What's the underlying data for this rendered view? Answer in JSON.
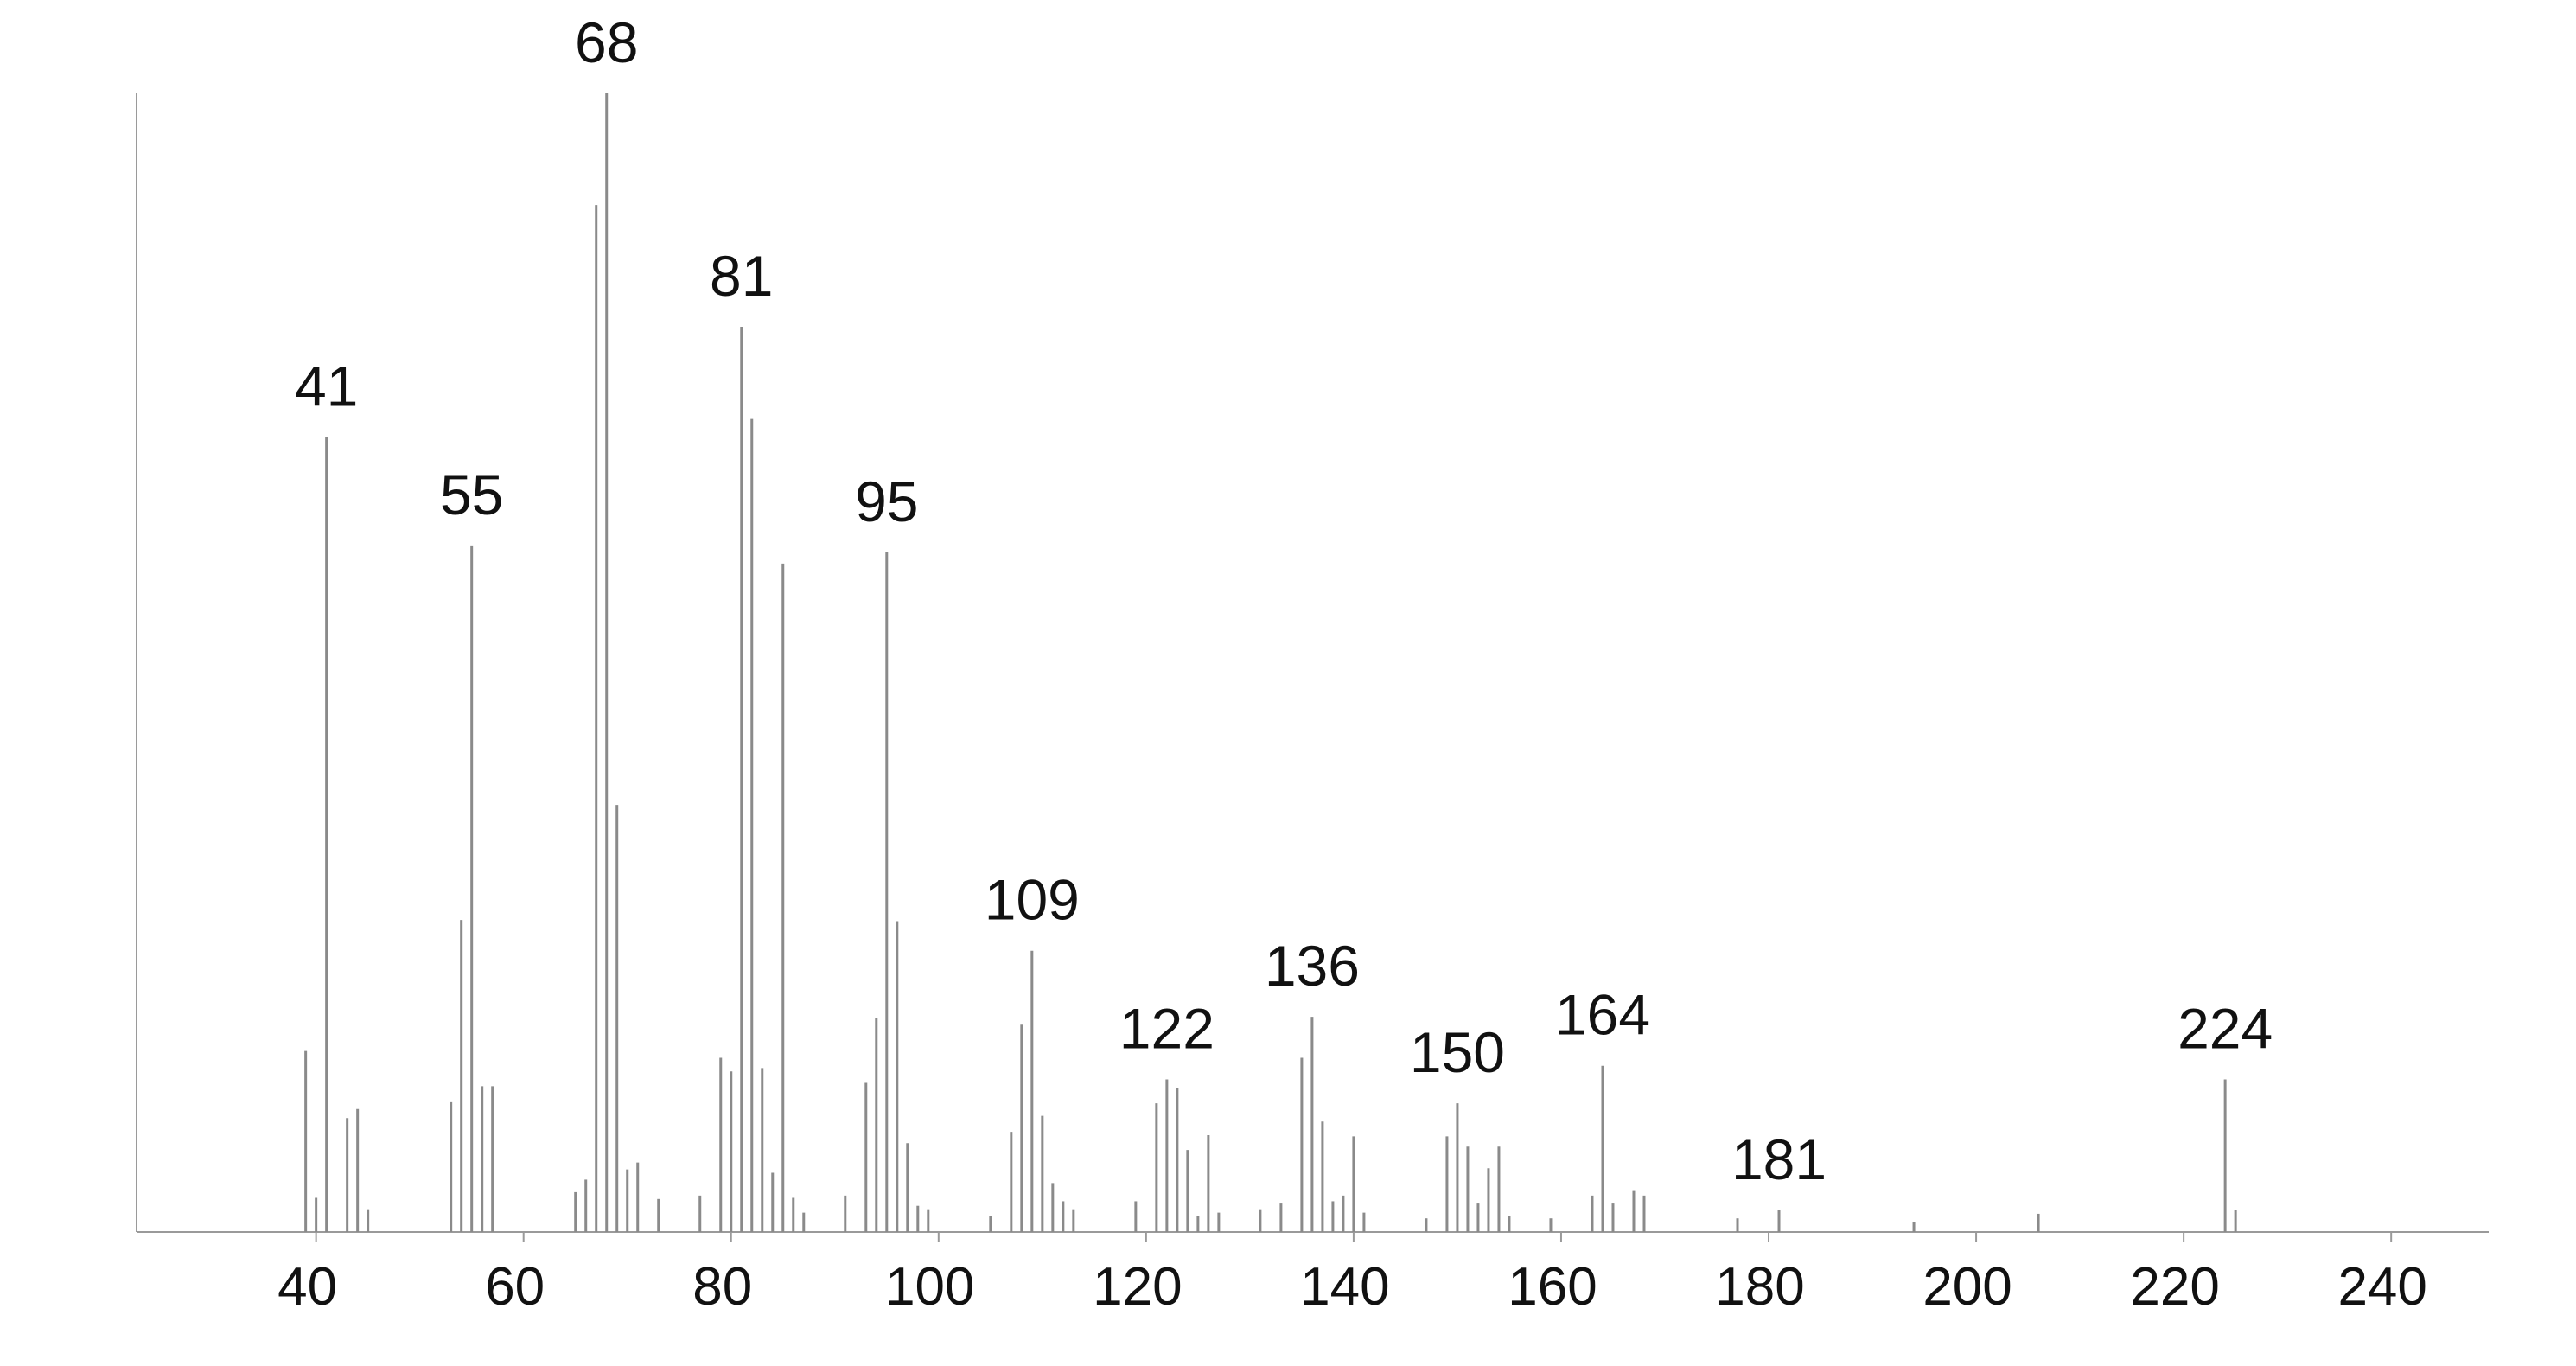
{
  "chart_data": {
    "type": "spectrum",
    "color": "#8a8a8a",
    "xlim": [
      22.7,
      249.4
    ],
    "ylim": [
      0,
      100
    ],
    "xticks": [
      40,
      60,
      80,
      100,
      120,
      140,
      160,
      180,
      200,
      220,
      240
    ],
    "x": [
      39,
      40,
      41,
      43,
      44,
      45,
      53,
      54,
      55,
      56,
      57,
      65,
      66,
      67,
      68,
      69,
      70,
      71,
      73,
      77,
      79,
      80,
      81,
      82,
      83,
      84,
      85,
      86,
      87,
      91,
      93,
      94,
      95,
      96,
      97,
      98,
      99,
      105,
      107,
      108,
      109,
      110,
      111,
      112,
      113,
      119,
      121,
      122,
      123,
      124,
      125,
      126,
      127,
      131,
      133,
      135,
      136,
      137,
      138,
      139,
      140,
      141,
      147,
      149,
      150,
      151,
      152,
      153,
      154,
      155,
      159,
      163,
      164,
      165,
      167,
      168,
      177,
      181,
      194,
      206,
      224,
      225
    ],
    "values": [
      15.9,
      3,
      69.8,
      10,
      10.8,
      2,
      11.4,
      27.4,
      60.3,
      12.8,
      12.8,
      3.5,
      4.6,
      90.2,
      100,
      37.5,
      5.5,
      6.1,
      2.9,
      3.2,
      15.3,
      14.1,
      79.5,
      71.4,
      14.4,
      5.2,
      58.7,
      3,
      1.7,
      3.2,
      13.1,
      18.8,
      59.7,
      27.3,
      7.8,
      2.3,
      2,
      1.4,
      8.8,
      18.2,
      24.7,
      10.2,
      4.3,
      2.7,
      2,
      2.7,
      11.3,
      13.4,
      12.6,
      7.2,
      1.4,
      8.5,
      1.7,
      2,
      2.5,
      15.3,
      18.9,
      9.7,
      2.7,
      3.2,
      8.4,
      1.7,
      1.2,
      8.4,
      11.3,
      7.5,
      2.5,
      5.6,
      7.5,
      1.4,
      1.2,
      3.2,
      14.6,
      2.5,
      3.6,
      3.2,
      1.2,
      1.9,
      0.9,
      1.6,
      13.4,
      1.9
    ],
    "annotations": [
      41,
      55,
      68,
      81,
      95,
      109,
      122,
      136,
      150,
      164,
      181,
      224
    ]
  }
}
